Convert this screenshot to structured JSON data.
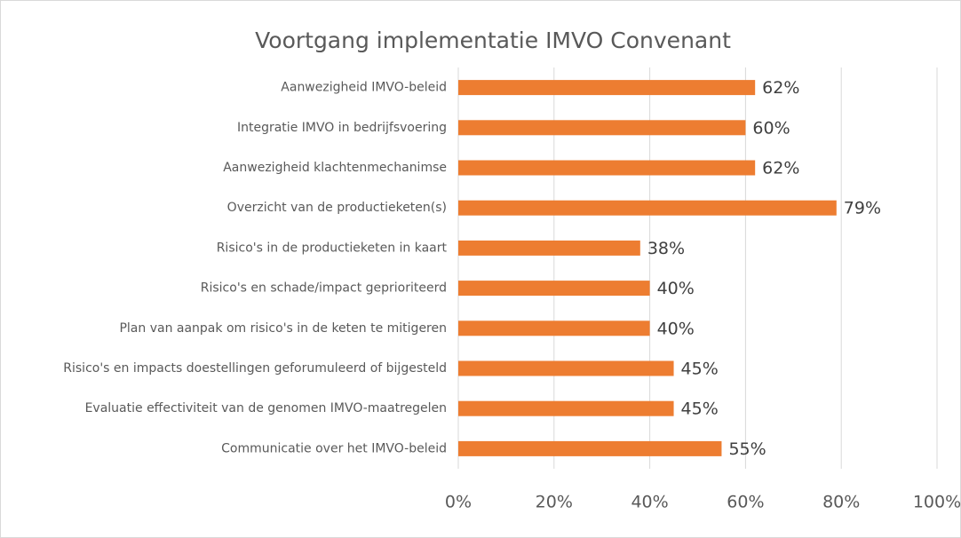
{
  "chart_data": {
    "type": "bar",
    "orientation": "horizontal",
    "title": "Voortgang implementatie IMVO Convenant",
    "categories": [
      "Aanwezigheid IMVO-beleid",
      "Integratie IMVO in bedrijfsvoering",
      "Aanwezigheid klachtenmechanimse",
      "Overzicht van de productieketen(s)",
      "Risico's in de productieketen in kaart",
      "Risico's en schade/impact geprioriteerd",
      "Plan van aanpak om risico's in de keten te mitigeren",
      "Risico's en impacts doestellingen geforumuleerd of bijgesteld",
      "Evaluatie effectiviteit van de genomen IMVO-maatregelen",
      "Communicatie over het IMVO-beleid"
    ],
    "values": [
      62,
      60,
      62,
      79,
      38,
      40,
      40,
      45,
      45,
      55
    ],
    "value_labels": [
      "62%",
      "60%",
      "62%",
      "79%",
      "38%",
      "40%",
      "40%",
      "45%",
      "45%",
      "55%"
    ],
    "color": "#ed7d31",
    "xlim": [
      0,
      100
    ],
    "xticks": [
      {
        "value": 0,
        "label": "0%"
      },
      {
        "value": 20,
        "label": "20%"
      },
      {
        "value": 40,
        "label": "40%"
      },
      {
        "value": 60,
        "label": "60%"
      },
      {
        "value": 80,
        "label": "80%"
      },
      {
        "value": 100,
        "label": "100%"
      }
    ],
    "grid": true
  }
}
